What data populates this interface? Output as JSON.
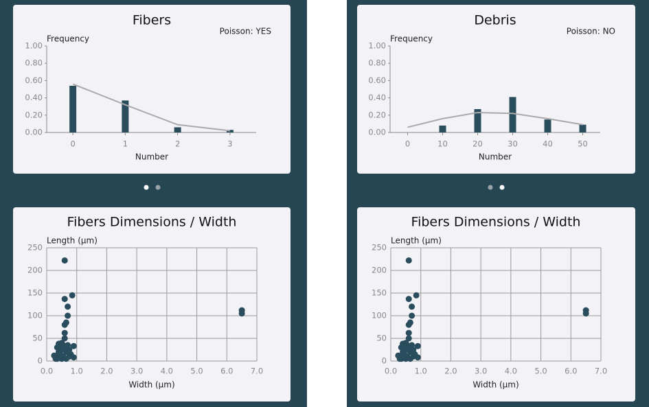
{
  "chart_data": [
    {
      "type": "bar",
      "title": "Fibers",
      "annotation": "Poisson: YES",
      "y_label": "Frequency",
      "x_label": "Number",
      "categories": [
        "0",
        "1",
        "2",
        "3"
      ],
      "series": [
        {
          "type": "bar",
          "color": "#2a4d5e",
          "values": [
            0.54,
            0.37,
            0.06,
            0.03
          ]
        },
        {
          "type": "line",
          "color": "#aaaaaa",
          "values": [
            0.56,
            0.32,
            0.09,
            0.02
          ]
        }
      ],
      "ylim": [
        0,
        1
      ],
      "yticks": [
        {
          "value": 0,
          "label": "0.00"
        },
        {
          "value": 0.2,
          "label": "0.20"
        },
        {
          "value": 0.4,
          "label": "0.40"
        },
        {
          "value": 0.6,
          "label": "0.60"
        },
        {
          "value": 0.8,
          "label": "0.80"
        },
        {
          "value": 1,
          "label": "1.00"
        }
      ],
      "grid": false
    },
    {
      "type": "bar",
      "title": "Debris",
      "annotation": "Poisson: NO",
      "y_label": "Frequency",
      "x_label": "Number",
      "categories": [
        "0",
        "10",
        "20",
        "30",
        "40",
        "50"
      ],
      "series": [
        {
          "type": "bar",
          "color": "#2a4d5e",
          "values": [
            0,
            0.08,
            0.27,
            0.41,
            0.15,
            0.09
          ]
        },
        {
          "type": "line",
          "color": "#aaaaaa",
          "values": [
            0.06,
            0.16,
            0.23,
            0.22,
            0.16,
            0.09
          ]
        }
      ],
      "ylim": [
        0,
        1
      ],
      "yticks": [
        {
          "value": 0,
          "label": "0.00"
        },
        {
          "value": 0.2,
          "label": "0.20"
        },
        {
          "value": 0.4,
          "label": "0.40"
        },
        {
          "value": 0.6,
          "label": "0.60"
        },
        {
          "value": 0.8,
          "label": "0.80"
        },
        {
          "value": 1,
          "label": "1.00"
        }
      ],
      "grid": false
    },
    {
      "type": "scatter",
      "title": "Fibers Dimensions / Width",
      "y_label": "Length (µm)",
      "x_label": "Width (µm)",
      "color": "#2a4d5e",
      "x": [
        0.6,
        0.85,
        0.6,
        0.7,
        0.7,
        0.65,
        0.6,
        0.6,
        0.6,
        0.5,
        0.4,
        0.35,
        0.3,
        0.25,
        0.35,
        0.4,
        0.45,
        0.5,
        0.55,
        0.6,
        0.65,
        0.7,
        0.75,
        0.8,
        0.9,
        0.9,
        0.5,
        0.65,
        0.45,
        0.55,
        0.75,
        0.3,
        6.5,
        6.5
      ],
      "y": [
        222,
        145,
        137,
        120,
        100,
        85,
        80,
        62,
        50,
        40,
        38,
        30,
        10,
        12,
        5,
        20,
        15,
        25,
        10,
        30,
        20,
        35,
        25,
        15,
        33,
        8,
        5,
        5,
        30,
        35,
        10,
        5,
        112,
        105
      ],
      "xlim": [
        0,
        7
      ],
      "xticks": [
        {
          "value": 0,
          "label": "0.0"
        },
        {
          "value": 1,
          "label": "1.0"
        },
        {
          "value": 2,
          "label": "2.0"
        },
        {
          "value": 3,
          "label": "3.0"
        },
        {
          "value": 4,
          "label": "4.0"
        },
        {
          "value": 5,
          "label": "5.0"
        },
        {
          "value": 6,
          "label": "6.0"
        },
        {
          "value": 7,
          "label": "7.0"
        }
      ],
      "ylim": [
        0,
        250
      ],
      "yticks": [
        0,
        50,
        100,
        150,
        200,
        250
      ],
      "grid": true
    },
    {
      "type": "scatter",
      "title": "Fibers Dimensions / Width",
      "y_label": "Length (µm)",
      "x_label": "Width (µm)",
      "color": "#2a4d5e",
      "x": [
        0.6,
        0.85,
        0.6,
        0.7,
        0.7,
        0.65,
        0.6,
        0.6,
        0.6,
        0.5,
        0.4,
        0.35,
        0.3,
        0.25,
        0.35,
        0.4,
        0.45,
        0.5,
        0.55,
        0.6,
        0.65,
        0.7,
        0.75,
        0.8,
        0.9,
        0.9,
        0.5,
        0.65,
        0.45,
        0.55,
        0.75,
        0.3,
        6.5,
        6.5
      ],
      "y": [
        222,
        145,
        137,
        120,
        100,
        85,
        80,
        62,
        50,
        40,
        38,
        30,
        10,
        12,
        5,
        20,
        15,
        25,
        10,
        30,
        20,
        35,
        25,
        15,
        33,
        8,
        5,
        5,
        30,
        35,
        10,
        5,
        112,
        105
      ],
      "xlim": [
        0,
        7
      ],
      "xticks": [
        {
          "value": 0,
          "label": "0.0"
        },
        {
          "value": 1,
          "label": "1.0"
        },
        {
          "value": 2,
          "label": "2.0"
        },
        {
          "value": 3,
          "label": "3.0"
        },
        {
          "value": 4,
          "label": "4.0"
        },
        {
          "value": 5,
          "label": "5.0"
        },
        {
          "value": 6,
          "label": "6.0"
        },
        {
          "value": 7,
          "label": "7.0"
        }
      ],
      "ylim": [
        0,
        250
      ],
      "yticks": [
        0,
        50,
        100,
        150,
        200,
        250
      ],
      "grid": true
    }
  ]
}
